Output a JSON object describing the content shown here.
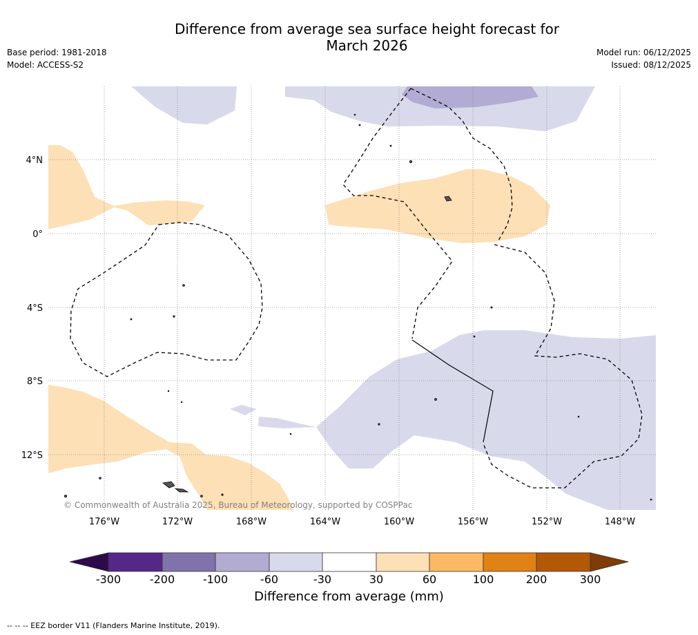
{
  "title_line1": "Difference from average sea surface height forecast for",
  "title_line2": "March 2026",
  "meta": {
    "base_period": "Base period: 1981-2018",
    "model": "Model: ACCESS-S2",
    "model_run": "Model run: 06/12/2025",
    "issued": "Issued: 08/12/2025"
  },
  "map": {
    "lat_labels": [
      "4°N",
      "0°",
      "4°S",
      "8°S",
      "12°S"
    ],
    "lon_labels": [
      "176°W",
      "172°W",
      "168°W",
      "164°W",
      "160°W",
      "156°W",
      "152°W",
      "148°W"
    ],
    "copyright": "© Commonwealth of Australia 2025, Bureau of Meteorology, supported by COSPPac"
  },
  "colorbar": {
    "ticks": [
      "-300",
      "-200",
      "-100",
      "-60",
      "-30",
      "30",
      "60",
      "100",
      "200",
      "300"
    ],
    "colors": [
      "#2d0a4b",
      "#542788",
      "#8073ac",
      "#b2abd2",
      "#d8daeb",
      "#ffffff",
      "#fee0b6",
      "#fdb863",
      "#e08214",
      "#b35806",
      "#7f3b08"
    ],
    "label": "Difference from average (mm)"
  },
  "footer": "--  --  -- EEZ border V11 (Flanders Marine Institute, 2019)."
}
